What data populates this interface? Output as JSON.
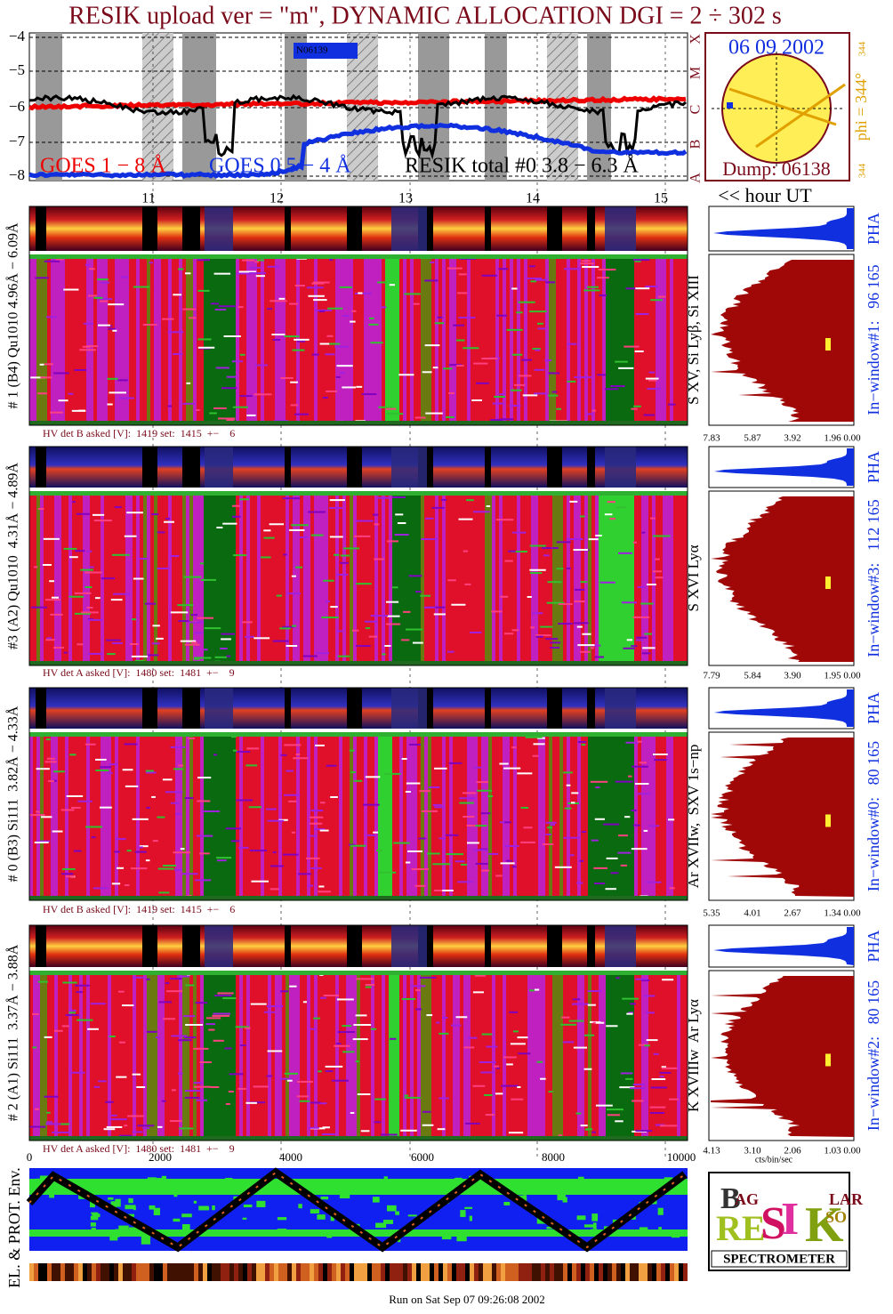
{
  "title": "RESIK upload ver = \"m\", DYNAMIC ALLOCATION  DGI =   2 ÷ 302 s",
  "goes_panel": {
    "yticks": [
      "−4",
      "−5",
      "−6",
      "−7",
      "−8"
    ],
    "class_letters": [
      "X",
      "M",
      "C",
      "B",
      "A"
    ],
    "legend": [
      "GOES 1 − 8 Å",
      "GOES 0.5 − 4 Å",
      "RESIK total #0   3.8 − 6.3 Å"
    ],
    "marker": "N06139"
  },
  "sun": {
    "date": "06 09 2002",
    "dump": "Dump: 06138",
    "phi": "phi = 344°",
    "phi_top": "344",
    "phi_bottom": "344"
  },
  "hour_axis": {
    "ticks": [
      "11",
      "12",
      "13",
      "14",
      "15"
    ],
    "label": "<< hour UT"
  },
  "panels": [
    {
      "left_label": "# 1 (B4) Qu1010 4.96Å − 6.09Å",
      "line_label": "S XV, Si Lyβ, Si XIII",
      "pha": "PHA",
      "window": "In−window#1:   96 165",
      "xticks": [
        "7.83",
        "5.87",
        "3.92",
        "1.96",
        "0.00"
      ],
      "hv": "HV det B asked [V]:  1419 set:  1415  +−    6"
    },
    {
      "left_label": "#3 (A2) Qu1010  4.31Å − 4.89Å",
      "line_label": "S XVI Lyα",
      "pha": "PHA",
      "window": "In−window#3:   112 165",
      "xticks": [
        "7.79",
        "5.84",
        "3.90",
        "1.95",
        "0.00"
      ],
      "hv": "HV det A asked [V]:  1480 set:  1481  +−    9"
    },
    {
      "left_label": "# 0 (B3) Si111  3.82Å − 4.33Å",
      "line_label": "Ar XVIIw,  SXV 1s−np",
      "pha": "PHA",
      "window": "In−window#0:   80 165",
      "xticks": [
        "5.35",
        "4.01",
        "2.67",
        "1.34",
        "0.00"
      ],
      "hv": "HV det B asked [V]:  1419 set:  1415  +−    6"
    },
    {
      "left_label": "# 2 (A1) Si111  3.37Å − 3.88Å",
      "line_label": "K XVIIIw  Ar Lyα",
      "pha": "PHA",
      "window": "In−window#2:   80 165",
      "xticks": [
        "4.13",
        "3.10",
        "2.06",
        "1.03",
        "0.00"
      ],
      "hv": "HV det A asked [V]:  1480 set:  1481  +−    9"
    }
  ],
  "bin_axis": {
    "ticks": [
      "0",
      "2000",
      "4000",
      "6000",
      "8000",
      "10000"
    ],
    "unit": "cts/bin/sec"
  },
  "env_label": "EL. & PROT. Env.",
  "logo": {
    "letters": [
      "B",
      "AG",
      "RE",
      "S",
      "I",
      "K",
      "SO",
      "LAR"
    ],
    "banner": "SPECTROMETER"
  },
  "footer": "Run on Sat Sep 07 09:26:08 2002"
}
